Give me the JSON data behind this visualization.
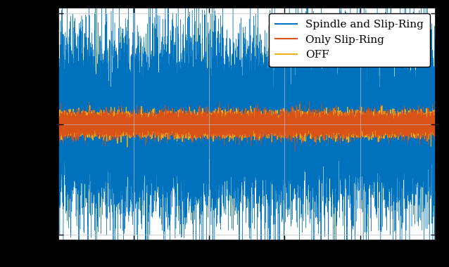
{
  "title": "",
  "xlabel": "",
  "ylabel": "",
  "legend_entries": [
    "Spindle and Slip-Ring",
    "Only Slip-Ring",
    "OFF"
  ],
  "colors": {
    "spindle": "#0072BD",
    "slip_ring": "#D95319",
    "off": "#EDB120"
  },
  "spindle_std": 0.38,
  "slip_ring_std": 0.055,
  "off_std": 0.048,
  "n_points": 20000,
  "xlim": [
    0,
    1
  ],
  "ylim": [
    -1.05,
    1.05
  ],
  "background_color": "#ffffff",
  "outer_background": "#000000",
  "legend_loc": "upper right",
  "legend_fontsize": 11,
  "yticks": [
    -1,
    0,
    1
  ],
  "xticks": [
    0.2,
    0.4,
    0.6,
    0.8
  ]
}
